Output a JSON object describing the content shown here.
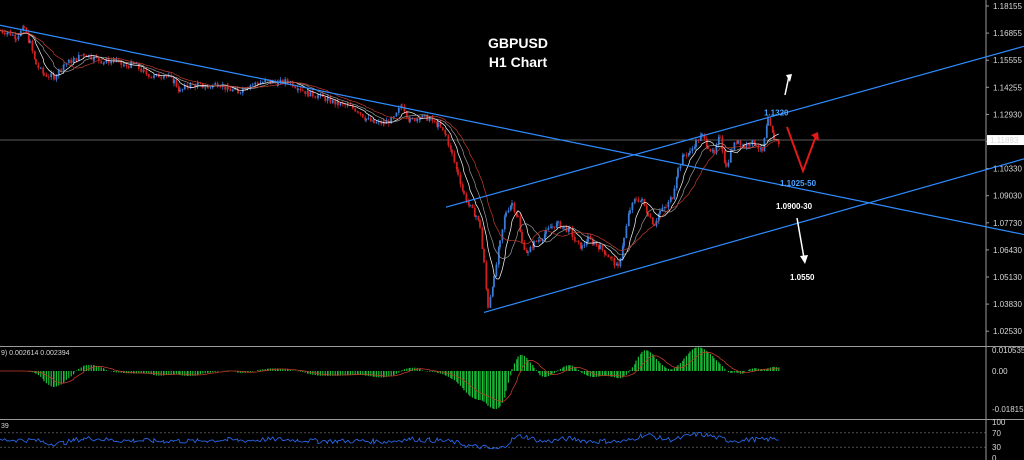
{
  "chart_data": {
    "type": "candlestick",
    "title": "GBPUSD",
    "subtitle": "H1 Chart",
    "y_ticks": [
      "1.18155",
      "1.16855",
      "1.15555",
      "1.14255",
      "1.12930",
      "1.11630",
      "1.10330",
      "1.09030",
      "1.07730",
      "1.06430",
      "1.05130",
      "1.03830",
      "1.02530"
    ],
    "ylim": [
      1.0215,
      1.1855
    ],
    "current_price": "1.11893",
    "current_price_value": 1.11893,
    "price_path": [
      [
        0,
        1.171
      ],
      [
        8,
        1.17
      ],
      [
        16,
        1.168
      ],
      [
        24,
        1.172
      ],
      [
        30,
        1.165
      ],
      [
        36,
        1.155
      ],
      [
        44,
        1.15
      ],
      [
        54,
        1.149
      ],
      [
        64,
        1.155
      ],
      [
        74,
        1.157
      ],
      [
        84,
        1.16
      ],
      [
        94,
        1.158
      ],
      [
        104,
        1.156
      ],
      [
        114,
        1.157
      ],
      [
        124,
        1.154
      ],
      [
        134,
        1.155
      ],
      [
        144,
        1.151
      ],
      [
        154,
        1.149
      ],
      [
        164,
        1.15
      ],
      [
        174,
        1.147
      ],
      [
        180,
        1.142
      ],
      [
        188,
        1.145
      ],
      [
        198,
        1.145
      ],
      [
        208,
        1.144
      ],
      [
        218,
        1.146
      ],
      [
        228,
        1.143
      ],
      [
        238,
        1.142
      ],
      [
        248,
        1.145
      ],
      [
        258,
        1.146
      ],
      [
        268,
        1.147
      ],
      [
        278,
        1.146
      ],
      [
        288,
        1.147
      ],
      [
        298,
        1.144
      ],
      [
        308,
        1.141
      ],
      [
        318,
        1.14
      ],
      [
        328,
        1.138
      ],
      [
        338,
        1.136
      ],
      [
        348,
        1.135
      ],
      [
        358,
        1.133
      ],
      [
        366,
        1.129
      ],
      [
        374,
        1.127
      ],
      [
        384,
        1.127
      ],
      [
        394,
        1.129
      ],
      [
        402,
        1.136
      ],
      [
        410,
        1.128
      ],
      [
        420,
        1.13
      ],
      [
        430,
        1.129
      ],
      [
        438,
        1.126
      ],
      [
        446,
        1.121
      ],
      [
        452,
        1.112
      ],
      [
        458,
        1.103
      ],
      [
        464,
        1.093
      ],
      [
        470,
        1.087
      ],
      [
        476,
        1.083
      ],
      [
        480,
        1.078
      ],
      [
        484,
        1.06
      ],
      [
        488,
        1.04
      ],
      [
        494,
        1.053
      ],
      [
        500,
        1.07
      ],
      [
        506,
        1.085
      ],
      [
        512,
        1.089
      ],
      [
        518,
        1.082
      ],
      [
        522,
        1.07
      ],
      [
        528,
        1.065
      ],
      [
        534,
        1.07
      ],
      [
        540,
        1.072
      ],
      [
        546,
        1.075
      ],
      [
        552,
        1.078
      ],
      [
        558,
        1.079
      ],
      [
        564,
        1.077
      ],
      [
        570,
        1.076
      ],
      [
        576,
        1.07
      ],
      [
        582,
        1.068
      ],
      [
        588,
        1.072
      ],
      [
        594,
        1.07
      ],
      [
        600,
        1.068
      ],
      [
        606,
        1.065
      ],
      [
        612,
        1.062
      ],
      [
        618,
        1.058
      ],
      [
        624,
        1.072
      ],
      [
        630,
        1.086
      ],
      [
        636,
        1.091
      ],
      [
        642,
        1.09
      ],
      [
        648,
        1.084
      ],
      [
        654,
        1.079
      ],
      [
        660,
        1.085
      ],
      [
        666,
        1.087
      ],
      [
        672,
        1.092
      ],
      [
        678,
        1.105
      ],
      [
        684,
        1.112
      ],
      [
        690,
        1.113
      ],
      [
        696,
        1.118
      ],
      [
        702,
        1.121
      ],
      [
        708,
        1.116
      ],
      [
        714,
        1.112
      ],
      [
        720,
        1.121
      ],
      [
        726,
        1.106
      ],
      [
        732,
        1.115
      ],
      [
        738,
        1.119
      ],
      [
        744,
        1.116
      ],
      [
        750,
        1.118
      ],
      [
        756,
        1.117
      ],
      [
        762,
        1.113
      ],
      [
        768,
        1.128
      ],
      [
        774,
        1.12
      ],
      [
        780,
        1.117
      ]
    ],
    "trend_lines": [
      {
        "name": "descending",
        "x1": 0,
        "y1": 1.1735,
        "x2": 1024,
        "y2": 1.074
      },
      {
        "name": "channel-upper",
        "x1": 446,
        "y1": 1.087,
        "x2": 1024,
        "y2": 1.1635
      },
      {
        "name": "channel-lower",
        "x1": 484,
        "y1": 1.037,
        "x2": 1024,
        "y2": 1.11
      }
    ],
    "annotations": [
      {
        "text": "1.1320",
        "kind": "target-up",
        "price": 1.132,
        "color": "#4aa3ff"
      },
      {
        "text": "1.1025-50",
        "kind": "support",
        "price": 1.102,
        "color": "#4aa3ff"
      },
      {
        "text": "1.0900-30",
        "kind": "support",
        "price": 1.09,
        "color": "#ffffff"
      },
      {
        "text": "1.0550",
        "kind": "target-down",
        "price": 1.055,
        "color": "#ffffff"
      }
    ],
    "macd": {
      "label": "9) 0.002614 0.002394",
      "ticks": [
        "0.010535",
        "0.00",
        "-0.018151"
      ]
    },
    "rsi": {
      "label": "39",
      "ticks": [
        "100",
        "70",
        "30",
        "0"
      ]
    },
    "colors": {
      "bull": "#3a7bd5",
      "bear": "#d22020",
      "trend": "#2f8cff",
      "histogram": "#1bbf3a",
      "rsi_line": "#2b6fff",
      "arrow_red": "#e11919"
    }
  }
}
